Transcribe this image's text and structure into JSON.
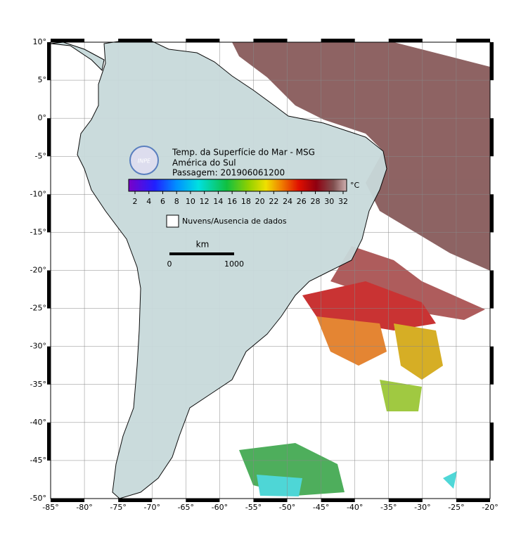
{
  "title": "Temp. da Superfície do Mar - MSG",
  "subtitle": "América do Sul",
  "pass": "Passagem: 201906061200",
  "logo": "INPE",
  "colorbar": {
    "unit": "°C",
    "ticks": [
      2,
      4,
      6,
      8,
      10,
      12,
      14,
      16,
      18,
      20,
      22,
      24,
      26,
      28,
      30,
      32
    ]
  },
  "legend": "Nuvens/Ausencia de dados",
  "scale": {
    "unit": "km",
    "start": "0",
    "end": "1000"
  },
  "axes": {
    "lon_ticks": [
      {
        "value": -85,
        "label": "-85°"
      },
      {
        "value": -80,
        "label": "-80°"
      },
      {
        "value": -75,
        "label": "-75°"
      },
      {
        "value": -70,
        "label": "-70°"
      },
      {
        "value": -65,
        "label": "-65°"
      },
      {
        "value": -60,
        "label": "-60°"
      },
      {
        "value": -55,
        "label": "-55°"
      },
      {
        "value": -50,
        "label": "-50°"
      },
      {
        "value": -45,
        "label": "-45°"
      },
      {
        "value": -40,
        "label": "-40°"
      },
      {
        "value": -35,
        "label": "-35°"
      },
      {
        "value": -30,
        "label": "-30°"
      },
      {
        "value": -25,
        "label": "-25°"
      },
      {
        "value": -20,
        "label": "-20°"
      }
    ],
    "lat_ticks": [
      {
        "value": 10,
        "label": "10°"
      },
      {
        "value": 5,
        "label": "5°"
      },
      {
        "value": 0,
        "label": "0°"
      },
      {
        "value": -5,
        "label": "-5°"
      },
      {
        "value": -10,
        "label": "-10°"
      },
      {
        "value": -15,
        "label": "-15°"
      },
      {
        "value": -20,
        "label": "-20°"
      },
      {
        "value": -25,
        "label": "-25°"
      },
      {
        "value": -30,
        "label": "-30°"
      },
      {
        "value": -35,
        "label": "-35°"
      },
      {
        "value": -40,
        "label": "-40°"
      },
      {
        "value": -45,
        "label": "-45°"
      },
      {
        "value": -50,
        "label": "-50°"
      }
    ]
  }
}
